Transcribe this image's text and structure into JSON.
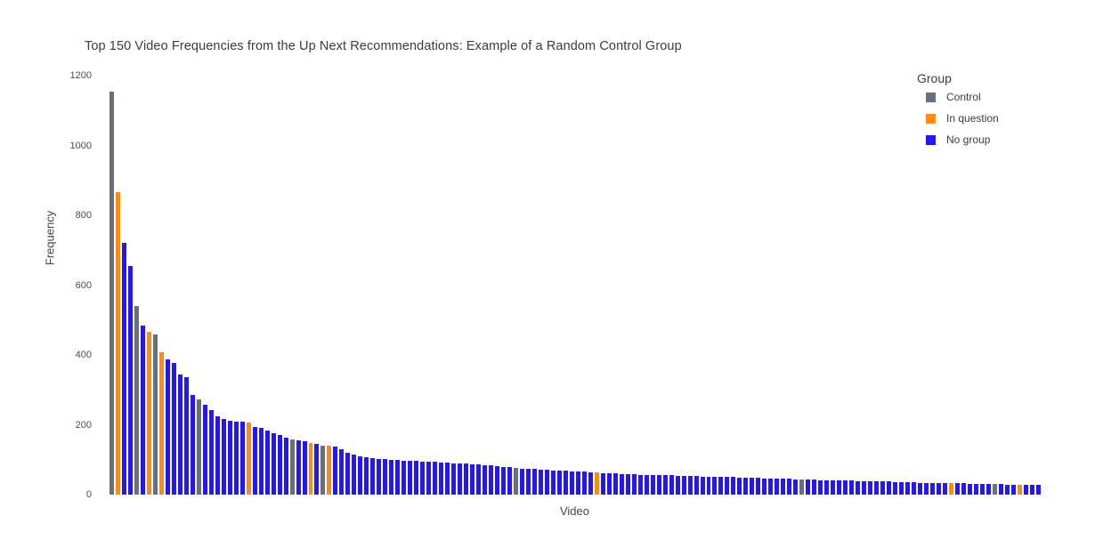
{
  "title": "Top 150 Video Frequencies from the Up Next Recommendations: Example of a Random Control Group",
  "axes": {
    "x_label": "Video",
    "y_label": "Frequency",
    "y_ticks": [
      0,
      200,
      400,
      600,
      800,
      1000,
      1200
    ],
    "y_max": 1200
  },
  "legend": {
    "title": "Group",
    "items": [
      {
        "key": "control",
        "label": "Control",
        "color": "#68707d"
      },
      {
        "key": "in_question",
        "label": "In question",
        "color": "#fb8b17"
      },
      {
        "key": "no_group",
        "label": "No group",
        "color": "#2417f0"
      }
    ]
  },
  "chart_data": {
    "type": "bar",
    "title": "Top 150 Video Frequencies from the Up Next Recommendations: Example of a Random Control Group",
    "xlabel": "Video",
    "ylabel": "Frequency",
    "ylim": [
      0,
      1200
    ],
    "grid": false,
    "legend_position": "top-right",
    "legend_title": "Group",
    "default_group": "no_group",
    "group_positions": {
      "control": [
        1,
        5,
        8,
        15,
        30,
        35,
        66,
        112,
        143
      ],
      "in_question": [
        2,
        7,
        9,
        23,
        33,
        36,
        79,
        136,
        147
      ]
    },
    "values": [
      1155,
      865,
      720,
      655,
      540,
      485,
      466,
      458,
      408,
      386,
      376,
      344,
      337,
      285,
      272,
      258,
      241,
      224,
      216,
      211,
      210,
      208,
      206,
      193,
      190,
      184,
      177,
      171,
      163,
      158,
      156,
      152,
      148,
      146,
      141,
      139,
      137,
      130,
      121,
      114,
      110,
      108,
      105,
      103,
      101,
      100,
      99,
      98,
      97,
      96,
      95,
      94,
      93,
      92,
      91,
      90,
      89,
      88,
      87,
      86,
      84,
      83,
      81,
      80,
      78,
      76,
      75,
      74,
      73,
      72,
      71,
      70,
      69,
      68,
      67,
      66,
      65,
      64,
      63,
      62,
      61,
      60,
      59,
      58,
      58,
      57,
      57,
      56,
      56,
      55,
      55,
      54,
      54,
      53,
      53,
      52,
      52,
      51,
      51,
      50,
      50,
      49,
      49,
      48,
      48,
      47,
      47,
      46,
      46,
      45,
      44,
      44,
      43,
      43,
      42,
      42,
      41,
      41,
      40,
      40,
      39,
      39,
      38,
      38,
      37,
      37,
      36,
      36,
      35,
      35,
      34,
      34,
      33,
      33,
      33,
      32,
      32,
      32,
      31,
      31,
      31,
      30,
      30,
      30,
      29,
      29,
      28,
      28,
      28,
      27
    ]
  }
}
